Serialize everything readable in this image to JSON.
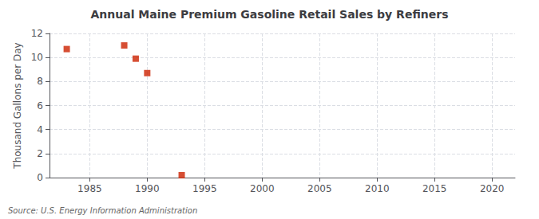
{
  "chart_data": {
    "type": "scatter",
    "title": "Annual Maine Premium Gasoline Retail Sales by Refiners",
    "ylabel": "Thousand Gallons per Day",
    "annotation": "Source: U.S. Energy Information Administration",
    "x": [
      1983,
      1988,
      1989,
      1990,
      1993
    ],
    "values": [
      10.7,
      11.0,
      9.9,
      8.7,
      0.2
    ],
    "color": "#cc2200",
    "marker": "square",
    "xlim": [
      1981.5,
      2022
    ],
    "xticks": [
      1985,
      1990,
      1995,
      2000,
      2005,
      2010,
      2015,
      2020
    ],
    "ylim": [
      0,
      12
    ],
    "yticks": [
      0,
      2,
      4,
      6,
      8,
      10,
      12
    ],
    "grid": true
  }
}
